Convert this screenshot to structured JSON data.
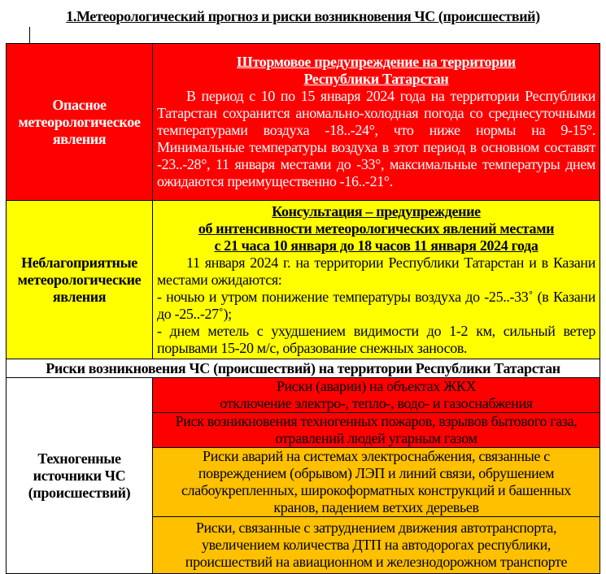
{
  "title": "1.Метеорологический прогноз и риски возникновения ЧС (происшествий)",
  "colors": {
    "danger": "#ff0000",
    "warning": "#ffff00",
    "risk_orange": "#ffc000"
  },
  "dangerous": {
    "label": "Опасное метеорологическое явления",
    "heading_lines": [
      "Штормовое предупреждение  на территории",
      "Республики Татарстан"
    ],
    "text": "В период с 10 по 15 января 2024 года на территории Республики Татарстан сохранится аномально-холодная погода со среднесуточными температурами воздуха -18..-24°, что ниже нормы на 9-15°. Минимальные температуры воздуха в этот период в основном составят -23..-28°, 11 января местами до -33°, максимальные температуры днем ожидаются преимущественно -16..-21°."
  },
  "adverse": {
    "label": "Неблагоприятные метеорологические явления",
    "heading_lines": [
      "Консультация – предупреждение",
      "об интенсивности метеорологических явлений местами",
      "с 21 часа 10 января до 18 часов 11 января 2024 года"
    ],
    "intro": "11 января 2024 г. на территории Республики Татарстан и в Казани местами ожидаются:",
    "items": [
      "- ночью и утром понижение температуры воздуха до -25..-33˚ (в Казани до -25..-27˚);",
      "- днем метель с ухудшением видимости до 1-2 км, сильный ветер порывами 15-20 м/с, образование снежных заносов."
    ]
  },
  "risks_header": "Риски возникновения ЧС (происшествий) на территории Республики Татарстан",
  "technogenic": {
    "label": "Техногенные источники ЧС (происшествий)",
    "risks": [
      {
        "level": "red",
        "lines": [
          "Риски (аварии) на объектах ЖКХ",
          "отключение электро-, тепло-, водо- и газоснабжения"
        ]
      },
      {
        "level": "red",
        "lines": [
          "Риск возникновения техногенных пожаров, взрывов бытового газа,",
          "отравлений людей угарным газом"
        ]
      },
      {
        "level": "orange",
        "lines": [
          "Риски аварий на системах электроснабжения, связанные с",
          "повреждением (обрывом) ЛЭП и линий связи, обрушением",
          "слабоукрепленных, широкоформатных конструкций и башенных",
          "кранов, падением ветхих деревьев"
        ]
      },
      {
        "level": "orange",
        "lines": [
          "Риски, связанные с затруднением движения автотранспорта,",
          "увеличением количества ДТП на автодорогах республики,",
          "происшествий на авиационном и железнодорожном транспорте"
        ]
      }
    ]
  }
}
